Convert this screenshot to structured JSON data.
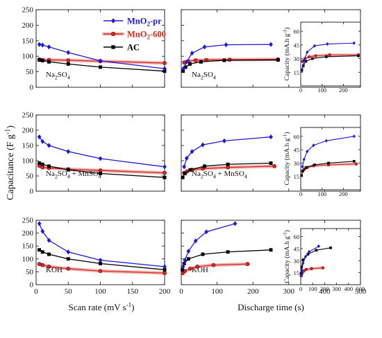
{
  "figure": {
    "y_axis_label": "Capacitance (F g",
    "y_axis_label_sup": "-1",
    "y_axis_label_end": ")",
    "x_axis_left_label": "Scan rate (mV s",
    "x_axis_left_sup": "-1",
    "x_axis_left_end": ")",
    "x_axis_right_label": "Discharge time (s)",
    "inset_y_label": "Capacity (mA.h g",
    "inset_y_sup": "-1",
    "inset_y_end": ")"
  },
  "legend": {
    "items": [
      {
        "name": "MnO",
        "sub": "2",
        "suffix": "-pr",
        "color": "#1a1adb",
        "marker": "diamond"
      },
      {
        "name": "MnO",
        "sub": "2",
        "suffix": "-600",
        "color": "#d2281e",
        "marker": "circle"
      },
      {
        "name": "AC",
        "sub": "",
        "suffix": "",
        "color": "#000000",
        "marker": "square"
      }
    ]
  },
  "chart_data": [
    {
      "type": "line",
      "row": 0,
      "panel": "scan",
      "electrolyte": [
        {
          "t": "Na"
        },
        {
          "t": "2",
          "sub": true
        },
        {
          "t": "SO"
        },
        {
          "t": "4",
          "sub": true
        }
      ],
      "xlim": [
        0,
        200
      ],
      "ylim": [
        0,
        250
      ],
      "xticks": [
        0,
        50,
        100,
        150,
        200
      ],
      "yticks": [
        0,
        50,
        100,
        150,
        200,
        250
      ],
      "series": [
        {
          "name": "MnO2-pr",
          "x": [
            5,
            10,
            20,
            50,
            100,
            200
          ],
          "y": [
            138,
            136,
            130,
            112,
            85,
            60
          ]
        },
        {
          "name": "MnO2-600",
          "x": [
            5,
            10,
            20,
            50,
            100,
            200
          ],
          "y": [
            90,
            88,
            88,
            87,
            84,
            78
          ]
        },
        {
          "name": "AC",
          "x": [
            5,
            10,
            20,
            50,
            100,
            200
          ],
          "y": [
            88,
            86,
            82,
            75,
            65,
            52
          ]
        }
      ]
    },
    {
      "type": "line",
      "row": 0,
      "panel": "discharge",
      "electrolyte": [
        {
          "t": "Na"
        },
        {
          "t": "2",
          "sub": true
        },
        {
          "t": "SO"
        },
        {
          "t": "4",
          "sub": true
        }
      ],
      "xlim": [
        0,
        500
      ],
      "ylim": [
        0,
        250
      ],
      "xticks": [
        0,
        100,
        200,
        300,
        400,
        500
      ],
      "yticks": [
        0,
        50,
        100,
        150,
        200,
        250
      ],
      "series": [
        {
          "name": "MnO2-pr",
          "x": [
            6,
            15,
            30,
            65,
            125,
            250
          ],
          "y": [
            60,
            82,
            110,
            130,
            137,
            138
          ]
        },
        {
          "name": "MnO2-600",
          "x": [
            8,
            20,
            40,
            70,
            135,
            270
          ],
          "y": [
            80,
            84,
            87,
            88,
            89,
            90
          ]
        },
        {
          "name": "AC",
          "x": [
            5,
            12,
            24,
            55,
            120,
            270
          ],
          "y": [
            52,
            65,
            75,
            82,
            87,
            88
          ]
        }
      ]
    },
    {
      "type": "line",
      "row": 0,
      "panel": "inset",
      "xlim": [
        0,
        280
      ],
      "ylim": [
        0,
        70
      ],
      "xticks": [
        0,
        100,
        200
      ],
      "yticks": [
        15,
        30,
        45,
        60
      ],
      "series": [
        {
          "name": "MnO2-pr",
          "x": [
            6,
            15,
            30,
            65,
            125,
            250
          ],
          "y": [
            18,
            28,
            37,
            44,
            46,
            47
          ]
        },
        {
          "name": "MnO2-600",
          "x": [
            8,
            20,
            40,
            70,
            135,
            270
          ],
          "y": [
            27,
            30,
            32,
            33,
            34,
            34
          ]
        },
        {
          "name": "AC",
          "x": [
            5,
            12,
            24,
            55,
            120,
            270
          ],
          "y": [
            17,
            22,
            27,
            30,
            32,
            33
          ]
        }
      ]
    },
    {
      "type": "line",
      "row": 1,
      "panel": "scan",
      "electrolyte": [
        {
          "t": "Na"
        },
        {
          "t": "2",
          "sub": true
        },
        {
          "t": "SO"
        },
        {
          "t": "4",
          "sub": true
        },
        {
          "t": " + MnSO"
        },
        {
          "t": "4",
          "sub": true
        }
      ],
      "xlim": [
        0,
        200
      ],
      "ylim": [
        0,
        250
      ],
      "xticks": [
        0,
        50,
        100,
        150,
        200
      ],
      "yticks": [
        0,
        50,
        100,
        150,
        200,
        250
      ],
      "series": [
        {
          "name": "MnO2-pr",
          "x": [
            5,
            10,
            20,
            50,
            100,
            200
          ],
          "y": [
            178,
            163,
            150,
            130,
            107,
            80
          ]
        },
        {
          "name": "MnO2-600",
          "x": [
            5,
            10,
            20,
            50,
            100,
            200
          ],
          "y": [
            83,
            78,
            76,
            72,
            68,
            60
          ]
        },
        {
          "name": "AC",
          "x": [
            5,
            10,
            20,
            50,
            100,
            200
          ],
          "y": [
            92,
            88,
            82,
            70,
            58,
            45
          ]
        }
      ]
    },
    {
      "type": "line",
      "row": 1,
      "panel": "discharge",
      "electrolyte": [
        {
          "t": "Na"
        },
        {
          "t": "2",
          "sub": true
        },
        {
          "t": "SO"
        },
        {
          "t": "4",
          "sub": true
        },
        {
          "t": " + MnSO"
        },
        {
          "t": "4",
          "sub": true
        }
      ],
      "xlim": [
        0,
        500
      ],
      "ylim": [
        0,
        250
      ],
      "xticks": [
        0,
        100,
        200,
        300,
        400,
        500
      ],
      "yticks": [
        0,
        50,
        100,
        150,
        200,
        250
      ],
      "series": [
        {
          "name": "MnO2-pr",
          "x": [
            8,
            15,
            30,
            60,
            120,
            250
          ],
          "y": [
            80,
            108,
            130,
            152,
            165,
            178
          ]
        },
        {
          "name": "MnO2-600",
          "x": [
            8,
            16,
            30,
            60,
            130,
            260
          ],
          "y": [
            60,
            65,
            70,
            74,
            78,
            82
          ]
        },
        {
          "name": "AC",
          "x": [
            4,
            10,
            25,
            65,
            130,
            250
          ],
          "y": [
            45,
            58,
            70,
            82,
            88,
            92
          ]
        }
      ]
    },
    {
      "type": "line",
      "row": 1,
      "panel": "inset",
      "xlim": [
        0,
        280
      ],
      "ylim": [
        0,
        70
      ],
      "xticks": [
        0,
        100,
        200
      ],
      "yticks": [
        15,
        30,
        45,
        60
      ],
      "series": [
        {
          "name": "MnO2-pr",
          "x": [
            8,
            15,
            30,
            60,
            120,
            250
          ],
          "y": [
            26,
            34,
            43,
            50,
            55,
            60
          ]
        },
        {
          "name": "MnO2-600",
          "x": [
            8,
            16,
            30,
            60,
            130,
            260
          ],
          "y": [
            21,
            23,
            25,
            27,
            28,
            29
          ]
        },
        {
          "name": "AC",
          "x": [
            4,
            10,
            25,
            65,
            130,
            250
          ],
          "y": [
            16,
            21,
            25,
            28,
            30,
            32
          ]
        }
      ]
    },
    {
      "type": "line",
      "row": 2,
      "panel": "scan",
      "electrolyte": [
        {
          "t": "KOH"
        }
      ],
      "xlim": [
        0,
        200
      ],
      "ylim": [
        0,
        250
      ],
      "xticks": [
        0,
        50,
        100,
        150,
        200
      ],
      "yticks": [
        0,
        50,
        100,
        150,
        200,
        250
      ],
      "series": [
        {
          "name": "MnO2-pr",
          "x": [
            5,
            10,
            20,
            50,
            100,
            200
          ],
          "y": [
            237,
            207,
            172,
            127,
            95,
            70
          ]
        },
        {
          "name": "MnO2-600",
          "x": [
            5,
            10,
            20,
            50,
            100,
            200
          ],
          "y": [
            80,
            76,
            70,
            62,
            53,
            45
          ]
        },
        {
          "name": "AC",
          "x": [
            5,
            10,
            20,
            50,
            100,
            200
          ],
          "y": [
            135,
            127,
            118,
            100,
            82,
            58
          ]
        }
      ]
    },
    {
      "type": "line",
      "row": 2,
      "panel": "discharge",
      "electrolyte": [
        {
          "t": "KOH"
        }
      ],
      "xlim": [
        0,
        500
      ],
      "ylim": [
        0,
        250
      ],
      "xticks": [
        0,
        100,
        200,
        300,
        400,
        500
      ],
      "yticks": [
        0,
        50,
        100,
        150,
        200,
        250
      ],
      "series": [
        {
          "name": "MnO2-pr",
          "x": [
            5,
            10,
            20,
            40,
            70,
            150
          ],
          "y": [
            70,
            95,
            130,
            170,
            205,
            237
          ]
        },
        {
          "name": "MnO2-600",
          "x": [
            4,
            10,
            25,
            45,
            90,
            185
          ],
          "y": [
            45,
            53,
            62,
            70,
            76,
            80
          ]
        },
        {
          "name": "AC",
          "x": [
            3,
            8,
            20,
            60,
            130,
            250
          ],
          "y": [
            58,
            82,
            100,
            118,
            127,
            135
          ]
        }
      ]
    },
    {
      "type": "line",
      "row": 2,
      "panel": "inset",
      "xlim": [
        0,
        500
      ],
      "ylim": [
        0,
        70
      ],
      "xticks": [
        0,
        100,
        200,
        300,
        400,
        500
      ],
      "yticks": [
        15,
        30,
        45,
        60
      ],
      "series": [
        {
          "name": "MnO2-pr",
          "x": [
            5,
            10,
            20,
            40,
            70,
            150
          ],
          "y": [
            12,
            18,
            27,
            35,
            41,
            48
          ]
        },
        {
          "name": "MnO2-600",
          "x": [
            4,
            10,
            25,
            45,
            90,
            185
          ],
          "y": [
            11,
            14,
            17,
            19,
            20,
            21
          ]
        },
        {
          "name": "AC",
          "x": [
            3,
            8,
            20,
            60,
            130,
            250
          ],
          "y": [
            14,
            22,
            31,
            38,
            43,
            46
          ]
        }
      ]
    }
  ]
}
